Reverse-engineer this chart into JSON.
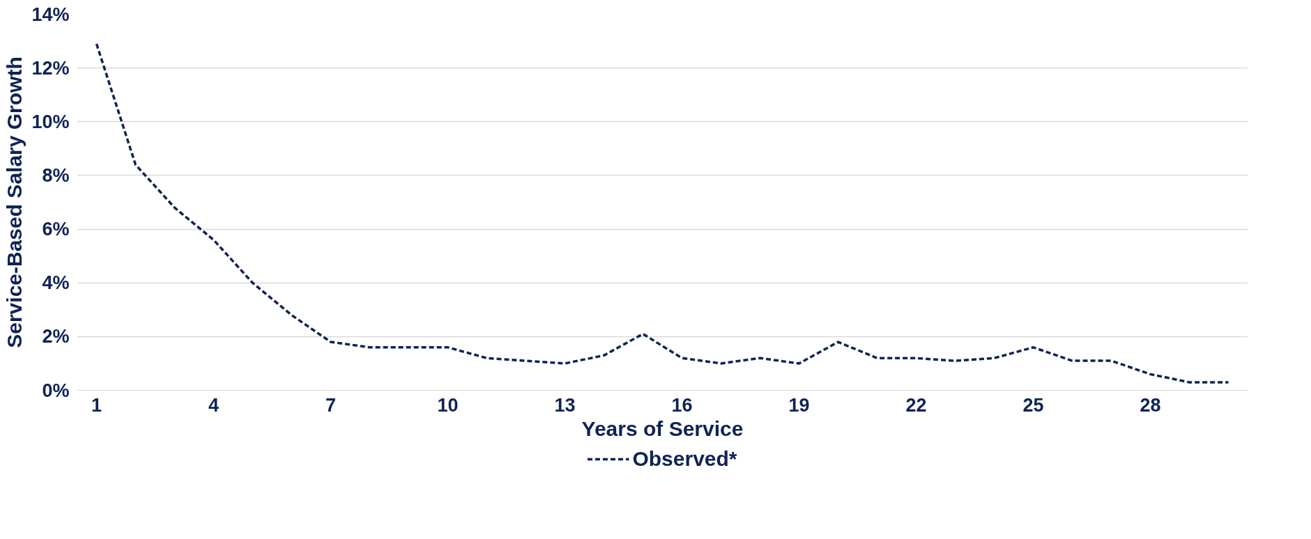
{
  "chart_data": {
    "type": "line",
    "xlabel": "Years of Service",
    "ylabel": "Service-Based Salary Growth",
    "x": [
      1,
      2,
      3,
      4,
      5,
      6,
      7,
      8,
      9,
      10,
      11,
      12,
      13,
      14,
      15,
      16,
      17,
      18,
      19,
      20,
      21,
      22,
      23,
      24,
      25,
      26,
      27,
      28,
      29,
      30
    ],
    "series": [
      {
        "name": "Observed*",
        "color": "#0e2355",
        "values": [
          12.9,
          8.4,
          6.8,
          5.6,
          4.0,
          2.8,
          1.8,
          1.6,
          1.6,
          1.6,
          1.2,
          1.1,
          1.0,
          1.3,
          2.1,
          1.2,
          1.0,
          1.2,
          1.0,
          1.8,
          1.2,
          1.2,
          1.1,
          1.2,
          1.6,
          1.1,
          1.1,
          0.6,
          0.3,
          0.3
        ]
      }
    ],
    "xlim": [
      0.5,
      30.5
    ],
    "xticks": [
      1,
      4,
      7,
      10,
      13,
      16,
      19,
      22,
      25,
      28
    ],
    "ylim": [
      0,
      14
    ],
    "yticks": [
      {
        "value": 0,
        "label": "0%"
      },
      {
        "value": 2,
        "label": "2%"
      },
      {
        "value": 4,
        "label": "4%"
      },
      {
        "value": 6,
        "label": "6%"
      },
      {
        "value": 8,
        "label": "8%"
      },
      {
        "value": 10,
        "label": "10%"
      },
      {
        "value": 12,
        "label": "12%"
      },
      {
        "value": 14,
        "label": "14%"
      }
    ],
    "grid": "y",
    "legend": "bottom",
    "marker": "none",
    "line_style": "dashed"
  }
}
